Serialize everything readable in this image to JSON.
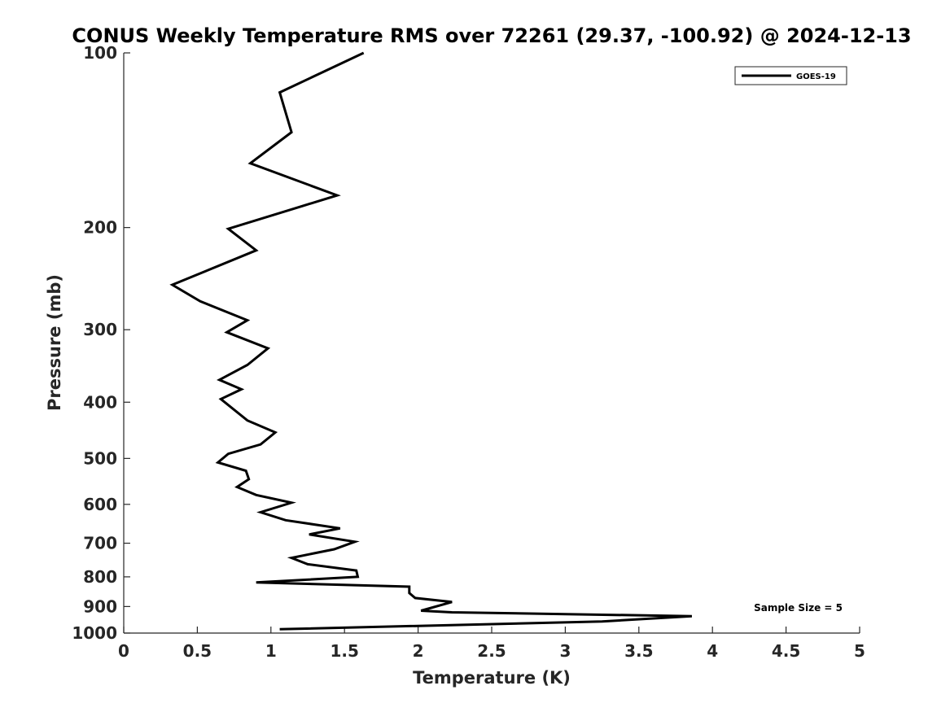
{
  "chart_data": {
    "type": "line",
    "title": "CONUS Weekly Temperature RMS over 72261 (29.37, -100.92) @ 2024-12-13",
    "xlabel": "Temperature (K)",
    "ylabel": "Pressure (mb)",
    "xlim": [
      0,
      5
    ],
    "ylim": [
      100,
      1000
    ],
    "y_scale": "log",
    "y_reversed": true,
    "x_ticks": [
      "0",
      "0.5",
      "1",
      "1.5",
      "2",
      "2.5",
      "3",
      "3.5",
      "4",
      "4.5",
      "5"
    ],
    "y_ticks": [
      "100",
      "200",
      "300",
      "400",
      "500",
      "600",
      "700",
      "800",
      "900",
      "1000"
    ],
    "grid": false,
    "legend_position": "top-right",
    "annotation": "Sample Size = 5",
    "series": [
      {
        "name": "GOES-19",
        "color": "#000000",
        "points": [
          [
            1.63,
            100
          ],
          [
            1.06,
            117
          ],
          [
            1.14,
            137
          ],
          [
            0.86,
            155
          ],
          [
            1.45,
            176
          ],
          [
            0.71,
            201
          ],
          [
            0.9,
            219
          ],
          [
            0.33,
            251
          ],
          [
            0.52,
            268
          ],
          [
            0.84,
            289
          ],
          [
            0.7,
            303
          ],
          [
            0.98,
            323
          ],
          [
            0.84,
            345
          ],
          [
            0.65,
            366
          ],
          [
            0.8,
            380
          ],
          [
            0.66,
            395
          ],
          [
            0.84,
            430
          ],
          [
            1.03,
            451
          ],
          [
            0.93,
            473
          ],
          [
            0.71,
            491
          ],
          [
            0.64,
            508
          ],
          [
            0.83,
            525
          ],
          [
            0.85,
            543
          ],
          [
            0.77,
            560
          ],
          [
            0.9,
            578
          ],
          [
            1.14,
            596
          ],
          [
            0.93,
            619
          ],
          [
            1.1,
            639
          ],
          [
            1.47,
            660
          ],
          [
            1.26,
            676
          ],
          [
            1.57,
            696
          ],
          [
            1.43,
            717
          ],
          [
            1.14,
            742
          ],
          [
            1.25,
            761
          ],
          [
            1.58,
            780
          ],
          [
            1.59,
            800
          ],
          [
            0.9,
            818
          ],
          [
            1.94,
            832
          ],
          [
            1.94,
            853
          ],
          [
            1.98,
            870
          ],
          [
            2.23,
            884
          ],
          [
            2.02,
            915
          ],
          [
            2.23,
            921
          ],
          [
            3.86,
            935
          ],
          [
            3.25,
            955
          ],
          [
            1.06,
            985
          ]
        ]
      }
    ]
  }
}
